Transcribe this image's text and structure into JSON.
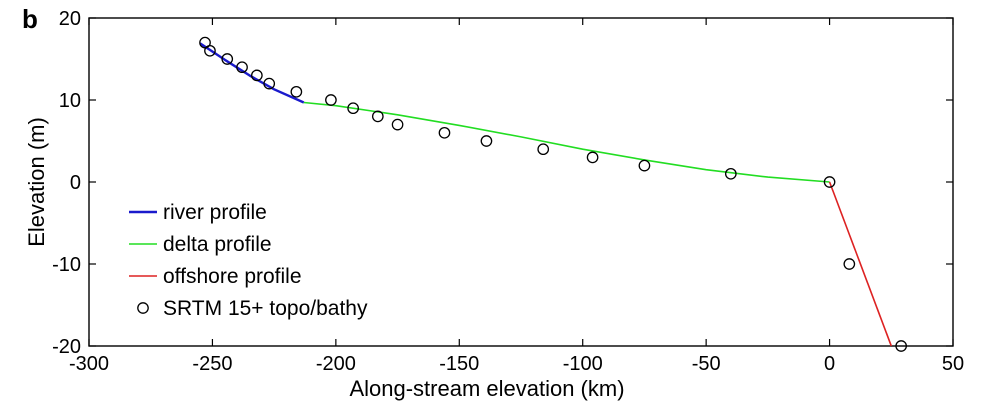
{
  "panel_label": "b",
  "chart_data": {
    "type": "line",
    "xlabel": "Along-stream elevation (km)",
    "ylabel": "Elevation (m)",
    "xlim": [
      -300,
      50
    ],
    "ylim": [
      -20,
      20
    ],
    "xticks": [
      -300,
      -250,
      -200,
      -150,
      -100,
      -50,
      0,
      50
    ],
    "yticks": [
      -20,
      -10,
      0,
      10,
      20
    ],
    "grid": false,
    "legend_position": "bottom-left",
    "series": [
      {
        "name": "river profile",
        "kind": "line",
        "color": "#1a1acc",
        "x": [
          -255,
          -245,
          -235,
          -225,
          -213
        ],
        "y": [
          16.9,
          14.9,
          13.0,
          11.3,
          9.7
        ]
      },
      {
        "name": "delta profile",
        "kind": "line",
        "color": "#22dd22",
        "x": [
          -213,
          -200,
          -175,
          -150,
          -125,
          -100,
          -75,
          -50,
          -25,
          0
        ],
        "y": [
          9.7,
          9.3,
          8.2,
          6.9,
          5.5,
          4.0,
          2.7,
          1.5,
          0.6,
          0
        ]
      },
      {
        "name": "offshore profile",
        "kind": "line",
        "color": "#dd2222",
        "x": [
          0,
          25
        ],
        "y": [
          0,
          -20
        ]
      },
      {
        "name": "SRTM 15+ topo/bathy",
        "kind": "scatter",
        "color": "#000000",
        "x": [
          -253,
          -251,
          -244,
          -238,
          -232,
          -227,
          -216,
          -202,
          -193,
          -183,
          -175,
          -156,
          -139,
          -116,
          -96,
          -75,
          -40,
          0,
          8,
          29
        ],
        "y": [
          17,
          16,
          15,
          14,
          13,
          12,
          11,
          10,
          9,
          8,
          7,
          6,
          5,
          4,
          3,
          2,
          1,
          0,
          -10,
          -20
        ]
      }
    ]
  }
}
